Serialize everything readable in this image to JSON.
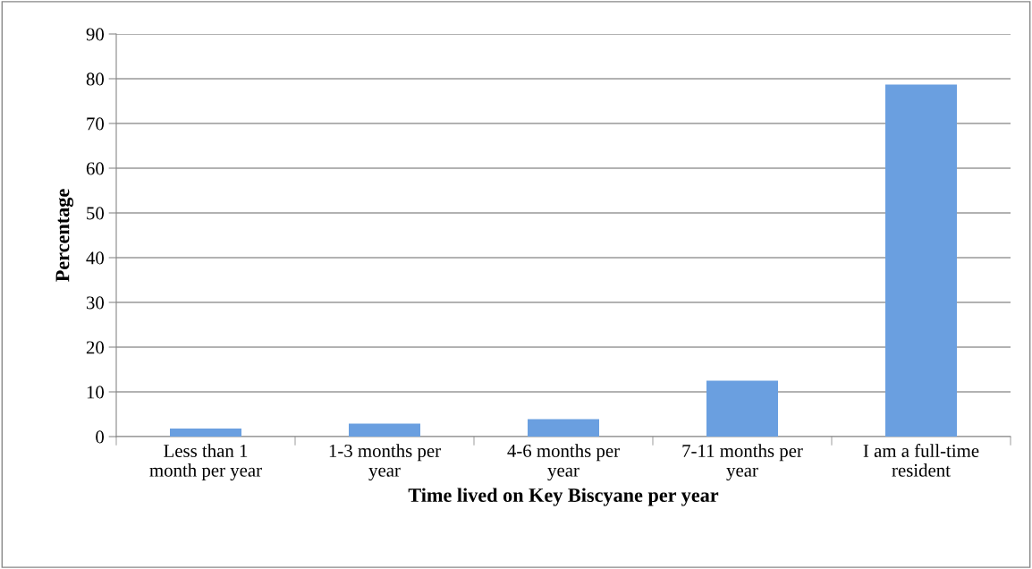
{
  "chart_data": {
    "type": "bar",
    "xlabel": "Time lived on Key Biscyane per year",
    "ylabel": "Percentage",
    "categories": [
      "Less than 1\nmonth per year",
      "1-3 months per\nyear",
      "4-6 months per\nyear",
      "7-11 months per\nyear",
      "I am a full-time\nresident"
    ],
    "values": [
      1.8,
      2.9,
      3.9,
      12.5,
      78.7
    ],
    "color": "#6a9fe0",
    "ylim": [
      0,
      90
    ],
    "yticks": [
      0,
      10,
      20,
      30,
      40,
      50,
      60,
      70,
      80,
      90
    ],
    "grid": "y",
    "legend": false
  }
}
